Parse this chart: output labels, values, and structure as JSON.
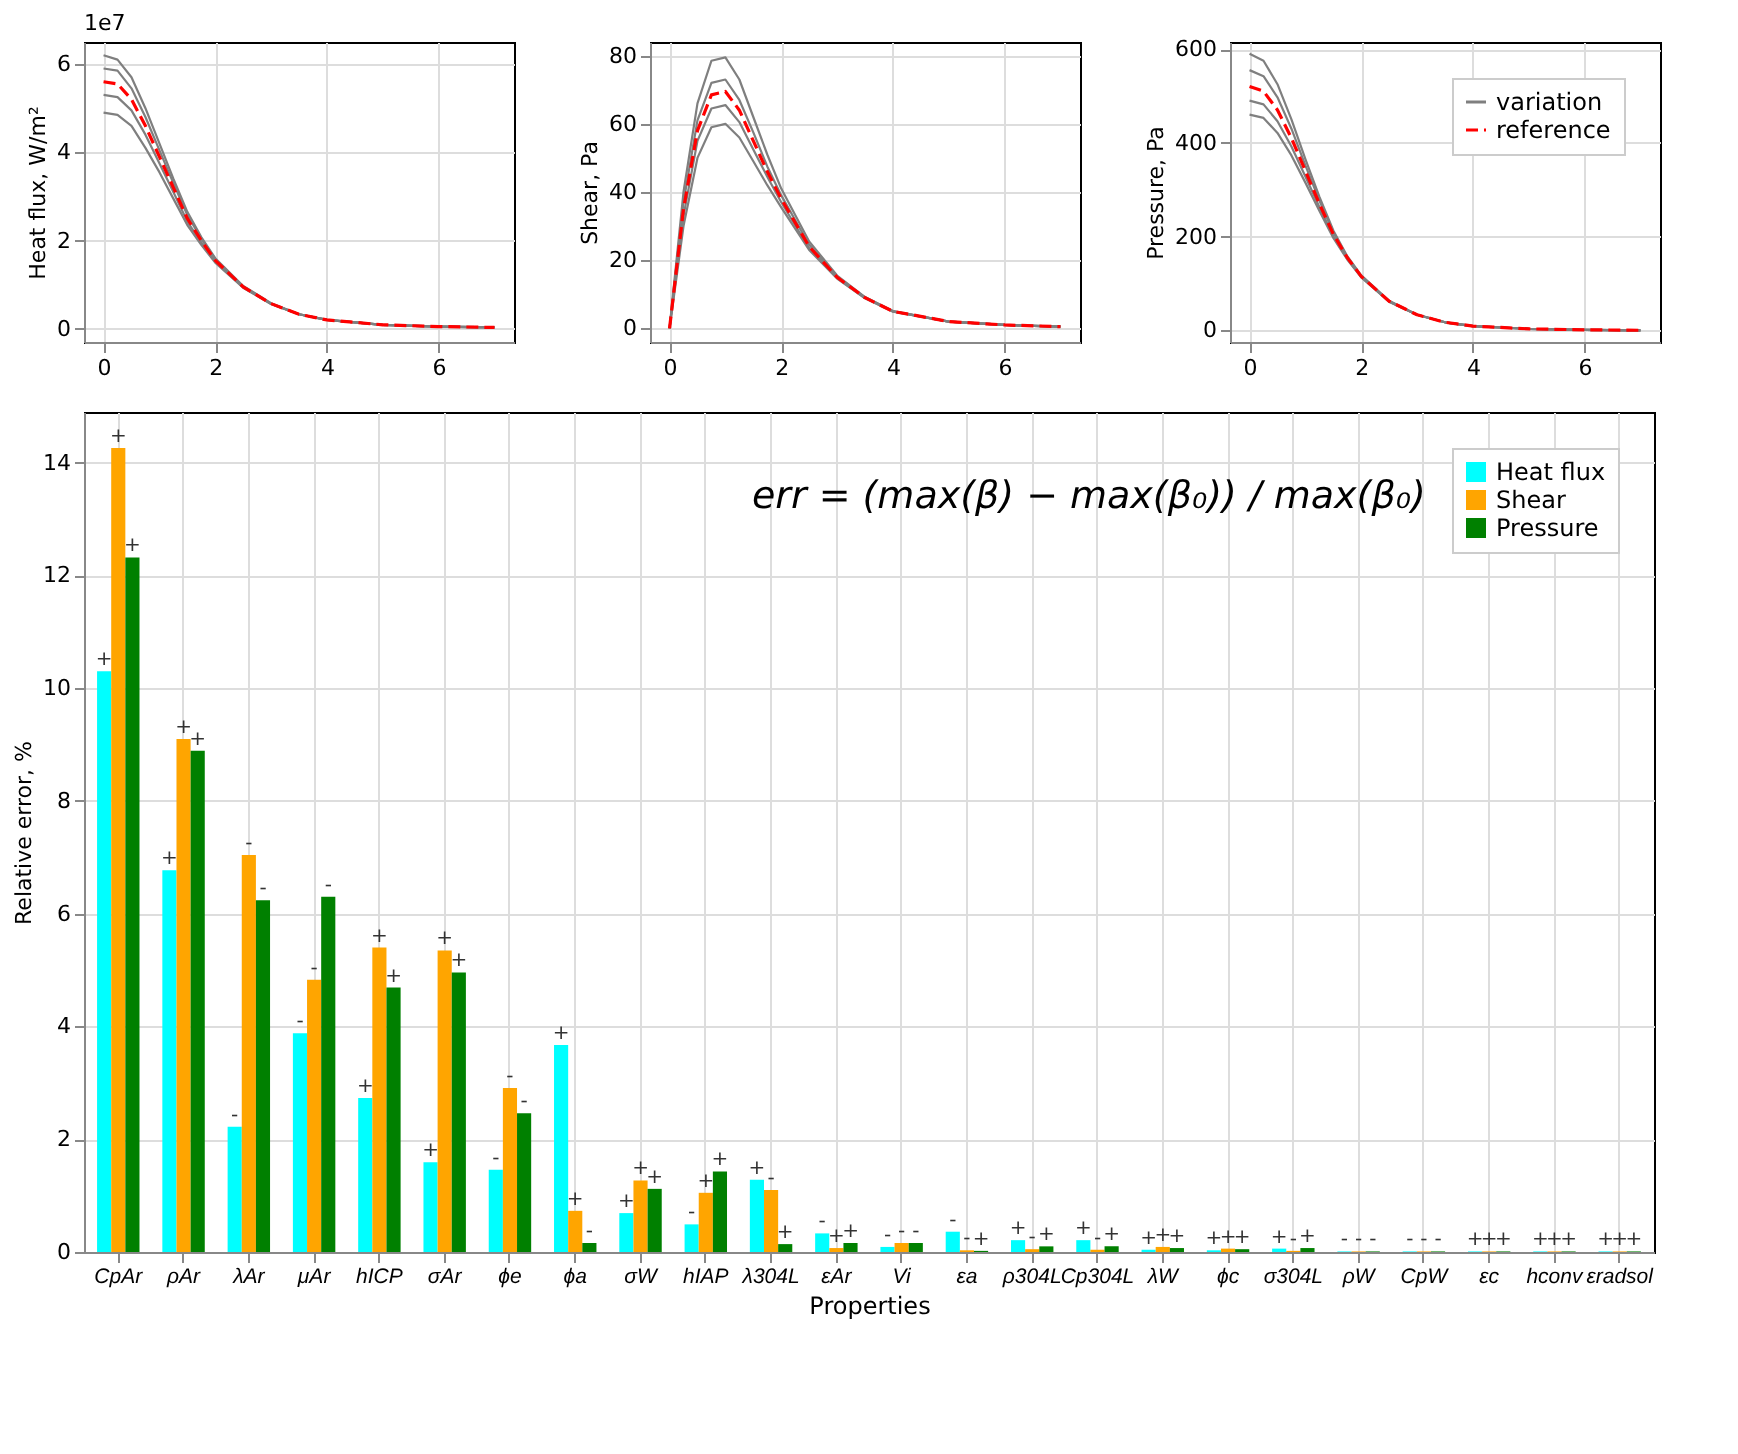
{
  "chart_data": [
    {
      "type": "line",
      "ylabel": "Heat flux, W/m²",
      "annotations": [
        "1e7"
      ],
      "xlim": [
        -0.35,
        7.35
      ],
      "xticks": [
        0,
        2,
        4,
        6
      ],
      "ylim": [
        -0.3,
        6.5
      ],
      "yticks": [
        0,
        2,
        4,
        6
      ],
      "grid": true,
      "legend": false,
      "x": [
        0,
        0.25,
        0.5,
        0.75,
        1,
        1.25,
        1.5,
        1.75,
        2,
        2.5,
        3,
        3.5,
        4,
        5,
        6,
        7
      ],
      "series": [
        {
          "color": "#7f7f7f",
          "line_style": "solid",
          "values": [
            6.2,
            6.1,
            5.7,
            5.0,
            4.2,
            3.4,
            2.65,
            2.08,
            1.6,
            0.97,
            0.58,
            0.33,
            0.2,
            0.09,
            0.05,
            0.03
          ]
        },
        {
          "color": "#7f7f7f",
          "line_style": "solid",
          "values": [
            5.9,
            5.85,
            5.45,
            4.8,
            4.05,
            3.3,
            2.58,
            2.04,
            1.58,
            0.96,
            0.57,
            0.33,
            0.2,
            0.09,
            0.05,
            0.03
          ]
        },
        {
          "color": "#7f7f7f",
          "line_style": "solid",
          "values": [
            5.3,
            5.25,
            4.95,
            4.4,
            3.75,
            3.1,
            2.43,
            1.96,
            1.52,
            0.94,
            0.56,
            0.33,
            0.2,
            0.09,
            0.05,
            0.03
          ]
        },
        {
          "color": "#7f7f7f",
          "line_style": "solid",
          "values": [
            4.9,
            4.85,
            4.6,
            4.1,
            3.55,
            2.95,
            2.35,
            1.9,
            1.5,
            0.93,
            0.56,
            0.33,
            0.2,
            0.09,
            0.05,
            0.03
          ]
        },
        {
          "color": "#ff0000",
          "line_style": "dashed",
          "values": [
            5.6,
            5.55,
            5.2,
            4.6,
            3.9,
            3.2,
            2.5,
            2.0,
            1.55,
            0.95,
            0.57,
            0.33,
            0.2,
            0.09,
            0.05,
            0.03
          ]
        }
      ]
    },
    {
      "type": "line",
      "ylabel": "Shear, Pa",
      "xlim": [
        -0.35,
        7.35
      ],
      "xticks": [
        0,
        2,
        4,
        6
      ],
      "ylim": [
        -4,
        84
      ],
      "yticks": [
        0,
        20,
        40,
        60,
        80
      ],
      "grid": true,
      "legend": false,
      "x": [
        0,
        0.25,
        0.5,
        0.75,
        1,
        1.25,
        1.5,
        1.75,
        2,
        2.5,
        3,
        3.5,
        4,
        5,
        6,
        7
      ],
      "series": [
        {
          "color": "#7f7f7f",
          "line_style": "solid",
          "values": [
            0,
            40,
            66,
            78.5,
            79.5,
            73,
            62,
            51,
            41,
            25.5,
            15.5,
            9.2,
            5.1,
            2,
            1,
            0.5
          ]
        },
        {
          "color": "#7f7f7f",
          "line_style": "solid",
          "values": [
            0,
            37,
            61,
            72,
            73,
            67,
            57.5,
            47.5,
            39,
            24.5,
            15.2,
            9.1,
            5,
            2,
            1,
            0.5
          ]
        },
        {
          "color": "#7f7f7f",
          "line_style": "solid",
          "values": [
            0,
            33,
            55,
            64.5,
            65.5,
            60.5,
            52.5,
            44.5,
            37,
            23.5,
            14.8,
            8.9,
            5,
            2,
            1,
            0.5
          ]
        },
        {
          "color": "#7f7f7f",
          "line_style": "solid",
          "values": [
            0,
            30,
            50,
            59,
            60,
            56,
            49,
            42,
            35.5,
            23,
            14.6,
            8.8,
            4.9,
            2,
            1,
            0.5
          ]
        },
        {
          "color": "#ff0000",
          "line_style": "dashed",
          "values": [
            0,
            35,
            58,
            68.5,
            69.5,
            64,
            55,
            46,
            38,
            24,
            15,
            9,
            5,
            2,
            1,
            0.5
          ]
        }
      ]
    },
    {
      "type": "line",
      "ylabel": "Pressure, Pa",
      "xlim": [
        -0.35,
        7.35
      ],
      "xticks": [
        0,
        2,
        4,
        6
      ],
      "ylim": [
        -25,
        615
      ],
      "yticks": [
        0,
        200,
        400,
        600
      ],
      "grid": true,
      "legend": "top right",
      "x": [
        0,
        0.25,
        0.5,
        0.75,
        1,
        1.25,
        1.5,
        1.75,
        2,
        2.5,
        3,
        3.5,
        4,
        5,
        6,
        7
      ],
      "series": [
        {
          "name": "variation",
          "color": "#7f7f7f",
          "line_style": "solid",
          "values": [
            590,
            575,
            525,
            450,
            365,
            285,
            213,
            158,
            117,
            63,
            33,
            17,
            9,
            3,
            1,
            0
          ]
        },
        {
          "color": "#7f7f7f",
          "line_style": "solid",
          "values": [
            555,
            542,
            497,
            430,
            352,
            277,
            209,
            156,
            116,
            62,
            33,
            17,
            9,
            3,
            1,
            0
          ]
        },
        {
          "color": "#7f7f7f",
          "line_style": "solid",
          "values": [
            490,
            482,
            446,
            392,
            328,
            263,
            201,
            153,
            114,
            61,
            33,
            17,
            9,
            3,
            1,
            0
          ]
        },
        {
          "color": "#7f7f7f",
          "line_style": "solid",
          "values": [
            460,
            453,
            421,
            373,
            315,
            255,
            197,
            151,
            113,
            61,
            33,
            17,
            9,
            3,
            1,
            0
          ]
        },
        {
          "name": "reference",
          "color": "#ff0000",
          "line_style": "dashed",
          "values": [
            520,
            510,
            470,
            410,
            340,
            270,
            205,
            155,
            115,
            62,
            33,
            17,
            9,
            3,
            1,
            0
          ]
        }
      ]
    },
    {
      "type": "bar",
      "xlabel": "Properties",
      "ylabel": "Relative error, %",
      "annotations": [
        "err = (max(β) − max(β₀)) / max(β₀)"
      ],
      "ylim": [
        0,
        14.9
      ],
      "yticks": [
        0,
        2,
        4,
        6,
        8,
        10,
        12,
        14
      ],
      "grid": true,
      "legend": "top right",
      "categories": [
        "CpAr",
        "ρAr",
        "λAr",
        "μAr",
        "hICP",
        "σAr",
        "ϕe",
        "ϕa",
        "σW",
        "hIAP",
        "λ304L",
        "εAr",
        "Vi",
        "εa",
        "ρ304L",
        "Cp304L",
        "λW",
        "ϕc",
        "σ304L",
        "ρW",
        "CpW",
        "εc",
        "hconv",
        "εradsol"
      ],
      "series": [
        {
          "name": "Heat flux",
          "color": "#00ffff",
          "values": [
            10.3,
            6.77,
            2.22,
            3.88,
            2.73,
            1.59,
            1.46,
            3.67,
            0.69,
            0.49,
            1.28,
            0.33,
            0.09,
            0.36,
            0.21,
            0.21,
            0.04,
            0.03,
            0.06,
            0.01,
            0.01,
            0.01,
            0.01,
            0.01
          ],
          "value_labels": [
            "+",
            "+",
            "-",
            "-",
            "+",
            "+",
            "-",
            "+",
            "+",
            "-",
            "+",
            "-",
            "-",
            "-",
            "+",
            "+",
            "+",
            "+",
            "+",
            "-",
            "-",
            "+",
            "+",
            "+"
          ]
        },
        {
          "name": "Shear",
          "color": "#ffa500",
          "values": [
            14.26,
            9.1,
            7.04,
            4.83,
            5.4,
            5.35,
            2.91,
            0.73,
            1.27,
            1.05,
            1.1,
            0.07,
            0.16,
            0.03,
            0.05,
            0.04,
            0.09,
            0.06,
            0.02,
            0.01,
            0.01,
            0.01,
            0.01,
            0.01
          ],
          "value_labels": [
            "+",
            "+",
            "-",
            "-",
            "+",
            "+",
            "-",
            "+",
            "+",
            "+",
            "-",
            "+",
            "-",
            "-",
            "-",
            "-",
            "+",
            "+",
            "-",
            "-",
            "-",
            "+",
            "+",
            "+"
          ]
        },
        {
          "name": "Pressure",
          "color": "#008000",
          "values": [
            12.32,
            8.89,
            6.24,
            6.3,
            4.69,
            4.96,
            2.46,
            0.16,
            1.12,
            1.43,
            0.14,
            0.16,
            0.16,
            0.02,
            0.1,
            0.1,
            0.07,
            0.05,
            0.07,
            0.01,
            0.01,
            0.01,
            0.01,
            0.01
          ],
          "value_labels": [
            "+",
            "+",
            "-",
            "-",
            "+",
            "+",
            "-",
            "-",
            "+",
            "+",
            "+",
            "+",
            "-",
            "+",
            "+",
            "+",
            "+",
            "+",
            "+",
            "-",
            "-",
            "+",
            "+",
            "+"
          ]
        }
      ]
    }
  ]
}
